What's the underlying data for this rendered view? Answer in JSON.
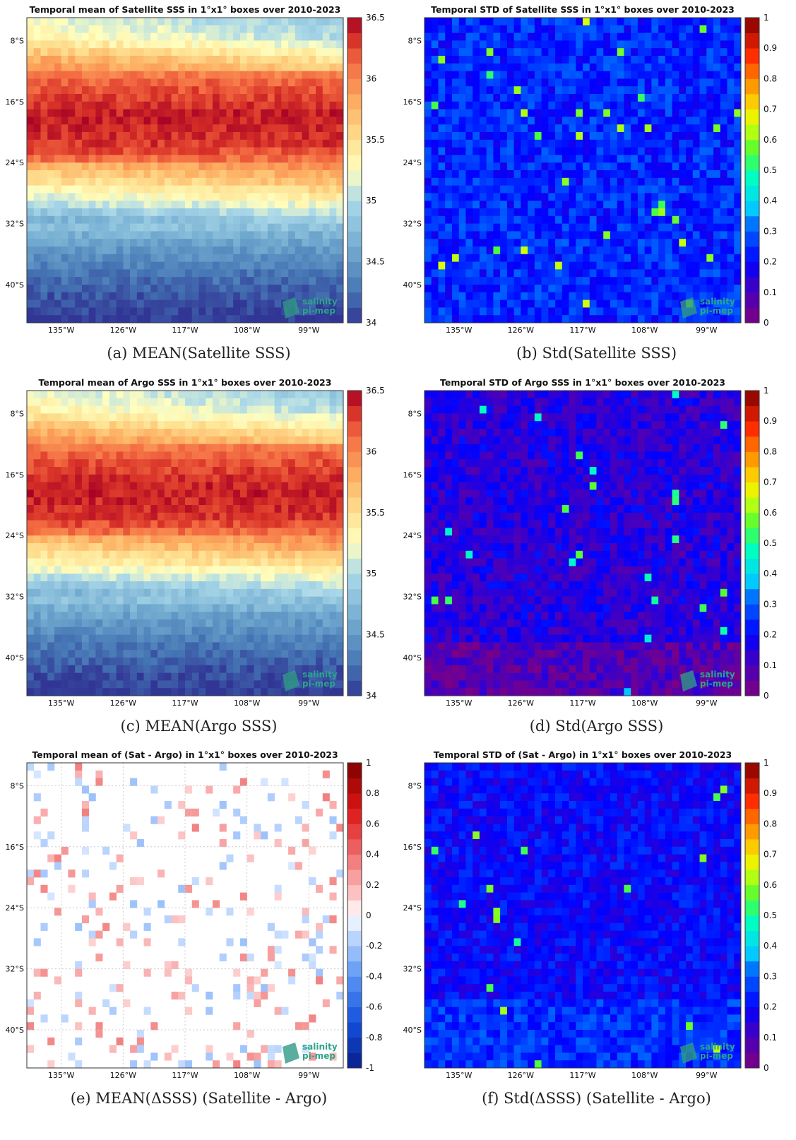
{
  "figure": {
    "brand": {
      "line1": "salinity",
      "line2": "pi-mep"
    }
  },
  "chart_data": [
    {
      "type": "heatmap",
      "title": "Temporal mean of Satellite SSS in 1°x1° boxes over 2010-2023",
      "caption": "(a) MEAN(Satellite SSS)",
      "xlabel": "",
      "ylabel": "",
      "x_ticks": [
        "135°W",
        "126°W",
        "117°W",
        "108°W",
        "99°W"
      ],
      "y_ticks": [
        "8°S",
        "16°S",
        "24°S",
        "32°S",
        "40°S"
      ],
      "xlim": [
        -140,
        -94
      ],
      "ylim": [
        -45,
        -5
      ],
      "colormap": "RdYlBu_r",
      "colorbar": {
        "min": 34,
        "max": 36.5,
        "ticks": [
          "34",
          "34.5",
          "35",
          "35.5",
          "36",
          "36.5"
        ]
      },
      "field": "salinity_mean",
      "profile_by_latitude": [
        [
          -5,
          35.2
        ],
        [
          -8,
          35.4
        ],
        [
          -11,
          35.9
        ],
        [
          -14,
          36.2
        ],
        [
          -18,
          36.4
        ],
        [
          -22,
          36.3
        ],
        [
          -25,
          35.9
        ],
        [
          -28,
          35.5
        ],
        [
          -31,
          35.0
        ],
        [
          -34,
          34.6
        ],
        [
          -38,
          34.3
        ],
        [
          -42,
          34.1
        ],
        [
          -45,
          34.0
        ]
      ],
      "grid": false,
      "logo": true
    },
    {
      "type": "heatmap",
      "title": "Temporal STD of Satellite SSS in 1°x1° boxes over 2010-2023",
      "caption": "(b) Std(Satellite SSS)",
      "xlabel": "",
      "ylabel": "",
      "x_ticks": [
        "135°W",
        "126°W",
        "117°W",
        "108°W",
        "99°W"
      ],
      "y_ticks": [
        "8°S",
        "16°S",
        "24°S",
        "32°S",
        "40°S"
      ],
      "xlim": [
        -140,
        -94
      ],
      "ylim": [
        -45,
        -5
      ],
      "colormap": "jet",
      "colorbar": {
        "min": 0,
        "max": 1,
        "ticks": [
          "0",
          "0.1",
          "0.2",
          "0.3",
          "0.4",
          "0.5",
          "0.6",
          "0.7",
          "0.8",
          "0.9",
          "1"
        ]
      },
      "field": "salinity_std",
      "typical_value": 0.24,
      "grid": false,
      "logo": true
    },
    {
      "type": "heatmap",
      "title": "Temporal mean of Argo SSS in 1°x1° boxes over 2010-2023",
      "caption": "(c) MEAN(Argo SSS)",
      "xlabel": "",
      "ylabel": "",
      "x_ticks": [
        "135°W",
        "126°W",
        "117°W",
        "108°W",
        "99°W"
      ],
      "y_ticks": [
        "8°S",
        "16°S",
        "24°S",
        "32°S",
        "40°S"
      ],
      "xlim": [
        -140,
        -94
      ],
      "ylim": [
        -45,
        -5
      ],
      "colormap": "RdYlBu_r",
      "colorbar": {
        "min": 34,
        "max": 36.5,
        "ticks": [
          "34",
          "34.5",
          "35",
          "35.5",
          "36",
          "36.5"
        ]
      },
      "field": "salinity_mean",
      "profile_by_latitude": [
        [
          -5,
          35.2
        ],
        [
          -8,
          35.4
        ],
        [
          -11,
          35.9
        ],
        [
          -14,
          36.2
        ],
        [
          -18,
          36.4
        ],
        [
          -22,
          36.3
        ],
        [
          -25,
          35.9
        ],
        [
          -28,
          35.5
        ],
        [
          -31,
          35.0
        ],
        [
          -34,
          34.6
        ],
        [
          -38,
          34.3
        ],
        [
          -42,
          34.1
        ],
        [
          -45,
          34.0
        ]
      ],
      "grid": false,
      "logo": true
    },
    {
      "type": "heatmap",
      "title": "Temporal STD of Argo SSS in 1°x1° boxes over 2010-2023",
      "caption": "(d) Std(Argo SSS)",
      "xlabel": "",
      "ylabel": "",
      "x_ticks": [
        "135°W",
        "126°W",
        "117°W",
        "108°W",
        "99°W"
      ],
      "y_ticks": [
        "8°S",
        "16°S",
        "24°S",
        "32°S",
        "40°S"
      ],
      "xlim": [
        -140,
        -94
      ],
      "ylim": [
        -45,
        -5
      ],
      "colormap": "jet",
      "colorbar": {
        "min": 0,
        "max": 1,
        "ticks": [
          "0",
          "0.1",
          "0.2",
          "0.3",
          "0.4",
          "0.5",
          "0.6",
          "0.7",
          "0.8",
          "0.9",
          "1"
        ]
      },
      "field": "salinity_std",
      "typical_value": 0.15,
      "grid": false,
      "logo": true
    },
    {
      "type": "heatmap",
      "title": "Temporal mean of (Sat - Argo) in 1°x1° boxes over 2010-2023",
      "caption": "(e) MEAN(ΔSSS) (Satellite - Argo)",
      "xlabel": "",
      "ylabel": "",
      "x_ticks": [
        "135°W",
        "126°W",
        "117°W",
        "108°W",
        "99°W"
      ],
      "y_ticks": [
        "8°S",
        "16°S",
        "24°S",
        "32°S",
        "40°S"
      ],
      "xlim": [
        -140,
        -94
      ],
      "ylim": [
        -45,
        -5
      ],
      "colormap": "diverging blue-white-red",
      "colorbar": {
        "min": -1,
        "max": 1,
        "ticks": [
          "-1",
          "-0.8",
          "-0.6",
          "-0.4",
          "-0.2",
          "0",
          "0.2",
          "0.4",
          "0.6",
          "0.8",
          "1"
        ]
      },
      "field": "salinity_difference_mean",
      "typical_value": 0.0,
      "grid": true,
      "logo": true
    },
    {
      "type": "heatmap",
      "title": "Temporal STD of (Sat - Argo) in 1°x1° boxes over 2010-2023",
      "caption": "(f) Std(ΔSSS) (Satellite - Argo)",
      "xlabel": "",
      "ylabel": "",
      "x_ticks": [
        "135°W",
        "126°W",
        "117°W",
        "108°W",
        "99°W"
      ],
      "y_ticks": [
        "8°S",
        "16°S",
        "24°S",
        "32°S",
        "40°S"
      ],
      "xlim": [
        -140,
        -94
      ],
      "ylim": [
        -45,
        -5
      ],
      "colormap": "jet",
      "colorbar": {
        "min": 0,
        "max": 1,
        "ticks": [
          "0",
          "0.1",
          "0.2",
          "0.3",
          "0.4",
          "0.5",
          "0.6",
          "0.7",
          "0.8",
          "0.9",
          "1"
        ]
      },
      "field": "salinity_difference_std",
      "typical_value": 0.2,
      "grid": false,
      "logo": true
    }
  ]
}
